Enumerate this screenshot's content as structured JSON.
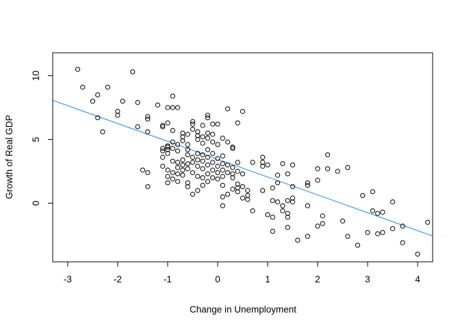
{
  "chart_data": {
    "type": "scatter",
    "title": "",
    "xlabel": "Change in Unemployment",
    "ylabel": "Growth of Real GDP",
    "xlim": [
      -3.3,
      4.3
    ],
    "ylim": [
      -4.6,
      11.8
    ],
    "xticks": [
      -3,
      -2,
      -1,
      0,
      1,
      2,
      3,
      4
    ],
    "yticks": [
      0,
      5,
      10
    ],
    "xtick_labels": [
      "-3",
      "-2",
      "-1",
      "0",
      "1",
      "2",
      "3",
      "4"
    ],
    "ytick_labels": [
      "0",
      "5",
      "10"
    ],
    "grid": false,
    "box": true,
    "point_style": "open-circle",
    "point_color": "#000000",
    "fit_line": {
      "intercept": 3.45,
      "slope": -1.4,
      "color": "#1e88e5"
    },
    "points": [
      [
        -2.8,
        10.5
      ],
      [
        -2.7,
        9.1
      ],
      [
        -2.5,
        8.0
      ],
      [
        -2.4,
        8.5
      ],
      [
        -2.2,
        9.1
      ],
      [
        -2.4,
        6.7
      ],
      [
        -2.3,
        5.6
      ],
      [
        -2.0,
        7.2
      ],
      [
        -2.0,
        6.9
      ],
      [
        -1.9,
        8.0
      ],
      [
        -1.7,
        10.3
      ],
      [
        -1.6,
        7.9
      ],
      [
        -1.6,
        6.0
      ],
      [
        -1.4,
        6.6
      ],
      [
        -1.4,
        6.8
      ],
      [
        -1.4,
        5.6
      ],
      [
        -1.5,
        2.6
      ],
      [
        -1.4,
        2.4
      ],
      [
        -1.4,
        1.3
      ],
      [
        -1.2,
        7.7
      ],
      [
        -1.0,
        7.5
      ],
      [
        -0.9,
        7.5
      ],
      [
        -0.8,
        7.5
      ],
      [
        -0.9,
        8.4
      ],
      [
        -1.1,
        6.1
      ],
      [
        -1.1,
        6.0
      ],
      [
        -1.0,
        6.3
      ],
      [
        -0.9,
        5.7
      ],
      [
        -1.1,
        4.3
      ],
      [
        -1.1,
        4.1
      ],
      [
        -1.0,
        4.4
      ],
      [
        -1.0,
        4.2
      ],
      [
        -1.0,
        4.5
      ],
      [
        -1.0,
        3.9
      ],
      [
        -0.9,
        4.3
      ],
      [
        -0.9,
        4.8
      ],
      [
        -0.8,
        4.6
      ],
      [
        -0.8,
        4.1
      ],
      [
        -0.7,
        5.5
      ],
      [
        -0.7,
        5.2
      ],
      [
        -0.7,
        4.9
      ],
      [
        -0.6,
        5.4
      ],
      [
        -0.6,
        4.6
      ],
      [
        -0.6,
        4.2
      ],
      [
        -0.5,
        6.4
      ],
      [
        -0.5,
        6.2
      ],
      [
        -0.5,
        5.8
      ],
      [
        -0.4,
        5.6
      ],
      [
        -0.4,
        5.3
      ],
      [
        -0.4,
        5.0
      ],
      [
        -0.3,
        6.1
      ],
      [
        -0.3,
        5.2
      ],
      [
        -0.3,
        4.7
      ],
      [
        -0.2,
        6.9
      ],
      [
        -0.2,
        6.7
      ],
      [
        -0.2,
        5.5
      ],
      [
        -0.2,
        5.1
      ],
      [
        -0.1,
        6.2
      ],
      [
        -0.1,
        5.4
      ],
      [
        -0.1,
        4.8
      ],
      [
        0.0,
        6.2
      ],
      [
        0.0,
        4.6
      ],
      [
        0.1,
        5.1
      ],
      [
        0.2,
        7.4
      ],
      [
        0.2,
        4.8
      ],
      [
        0.3,
        4.3
      ],
      [
        0.3,
        4.4
      ],
      [
        0.4,
        6.3
      ],
      [
        0.5,
        7.2
      ],
      [
        -1.1,
        3.6
      ],
      [
        -1.1,
        2.9
      ],
      [
        -1.0,
        2.6
      ],
      [
        -1.0,
        2.1
      ],
      [
        -1.0,
        1.6
      ],
      [
        -0.9,
        3.3
      ],
      [
        -0.9,
        2.4
      ],
      [
        -0.9,
        1.9
      ],
      [
        -0.8,
        3.2
      ],
      [
        -0.8,
        2.8
      ],
      [
        -0.8,
        2.3
      ],
      [
        -0.8,
        1.7
      ],
      [
        -0.7,
        3.4
      ],
      [
        -0.7,
        3.0
      ],
      [
        -0.7,
        2.6
      ],
      [
        -0.7,
        2.2
      ],
      [
        -0.6,
        3.8
      ],
      [
        -0.6,
        3.1
      ],
      [
        -0.6,
        2.7
      ],
      [
        -0.6,
        1.6
      ],
      [
        -0.6,
        1.3
      ],
      [
        -0.5,
        3.6
      ],
      [
        -0.5,
        3.2
      ],
      [
        -0.5,
        2.4
      ],
      [
        -0.5,
        0.7
      ],
      [
        -0.4,
        3.9
      ],
      [
        -0.4,
        3.4
      ],
      [
        -0.4,
        2.9
      ],
      [
        -0.4,
        2.1
      ],
      [
        -0.4,
        1.0
      ],
      [
        -0.3,
        3.8
      ],
      [
        -0.3,
        3.3
      ],
      [
        -0.3,
        2.7
      ],
      [
        -0.3,
        2.0
      ],
      [
        -0.3,
        1.4
      ],
      [
        -0.2,
        4.2
      ],
      [
        -0.2,
        3.6
      ],
      [
        -0.2,
        3.0
      ],
      [
        -0.2,
        2.3
      ],
      [
        -0.2,
        1.7
      ],
      [
        -0.1,
        3.9
      ],
      [
        -0.1,
        3.2
      ],
      [
        -0.1,
        2.6
      ],
      [
        -0.1,
        2.0
      ],
      [
        0.0,
        3.5
      ],
      [
        0.0,
        2.9
      ],
      [
        0.0,
        2.4
      ],
      [
        0.0,
        1.9
      ],
      [
        0.1,
        3.7
      ],
      [
        0.1,
        3.1
      ],
      [
        0.1,
        2.6
      ],
      [
        0.1,
        2.1
      ],
      [
        0.1,
        1.4
      ],
      [
        0.1,
        0.5
      ],
      [
        0.1,
        -0.2
      ],
      [
        0.2,
        3.0
      ],
      [
        0.2,
        2.4
      ],
      [
        0.2,
        0.7
      ],
      [
        0.3,
        2.8
      ],
      [
        0.3,
        2.3
      ],
      [
        0.3,
        2.0
      ],
      [
        0.3,
        1.1
      ],
      [
        0.4,
        3.2
      ],
      [
        0.4,
        2.5
      ],
      [
        0.4,
        1.5
      ],
      [
        0.4,
        1.2
      ],
      [
        0.4,
        0.9
      ],
      [
        0.5,
        2.3
      ],
      [
        0.5,
        1.3
      ],
      [
        0.5,
        0.4
      ],
      [
        0.6,
        1.0
      ],
      [
        0.6,
        0.6
      ],
      [
        0.6,
        0.3
      ],
      [
        0.7,
        3.2
      ],
      [
        0.7,
        -0.6
      ],
      [
        0.9,
        3.6
      ],
      [
        0.9,
        3.2
      ],
      [
        0.9,
        2.9
      ],
      [
        0.9,
        1.0
      ],
      [
        1.0,
        3.0
      ],
      [
        1.0,
        -0.9
      ],
      [
        1.1,
        1.2
      ],
      [
        1.1,
        0.2
      ],
      [
        1.1,
        -1.1
      ],
      [
        1.1,
        -2.2
      ],
      [
        1.2,
        2.2
      ],
      [
        1.2,
        1.6
      ],
      [
        1.2,
        0.1
      ],
      [
        1.3,
        3.1
      ],
      [
        1.3,
        -0.2
      ],
      [
        1.3,
        -0.6
      ],
      [
        1.4,
        2.3
      ],
      [
        1.4,
        0.2
      ],
      [
        1.4,
        -0.8
      ],
      [
        1.4,
        -1.1
      ],
      [
        1.4,
        -1.9
      ],
      [
        1.5,
        3.0
      ],
      [
        1.5,
        1.3
      ],
      [
        1.5,
        0.4
      ],
      [
        1.5,
        0.1
      ],
      [
        1.6,
        -2.9
      ],
      [
        1.8,
        1.6
      ],
      [
        1.8,
        1.4
      ],
      [
        1.8,
        -0.2
      ],
      [
        1.8,
        -2.6
      ],
      [
        2.0,
        2.7
      ],
      [
        2.0,
        1.8
      ],
      [
        2.0,
        -1.8
      ],
      [
        2.1,
        -1.0
      ],
      [
        2.1,
        -1.6
      ],
      [
        2.2,
        3.8
      ],
      [
        2.2,
        2.7
      ],
      [
        2.4,
        2.5
      ],
      [
        2.5,
        -1.4
      ],
      [
        2.6,
        2.8
      ],
      [
        2.6,
        -2.6
      ],
      [
        2.8,
        -3.3
      ],
      [
        2.9,
        0.6
      ],
      [
        3.0,
        -2.3
      ],
      [
        3.1,
        0.9
      ],
      [
        3.1,
        -0.6
      ],
      [
        3.2,
        -0.8
      ],
      [
        3.2,
        -2.4
      ],
      [
        3.3,
        -0.7
      ],
      [
        3.3,
        -2.3
      ],
      [
        3.5,
        0.1
      ],
      [
        3.5,
        -2.0
      ],
      [
        3.7,
        -1.8
      ],
      [
        3.7,
        -3.1
      ],
      [
        4.0,
        -4.0
      ],
      [
        4.2,
        -1.5
      ]
    ]
  }
}
